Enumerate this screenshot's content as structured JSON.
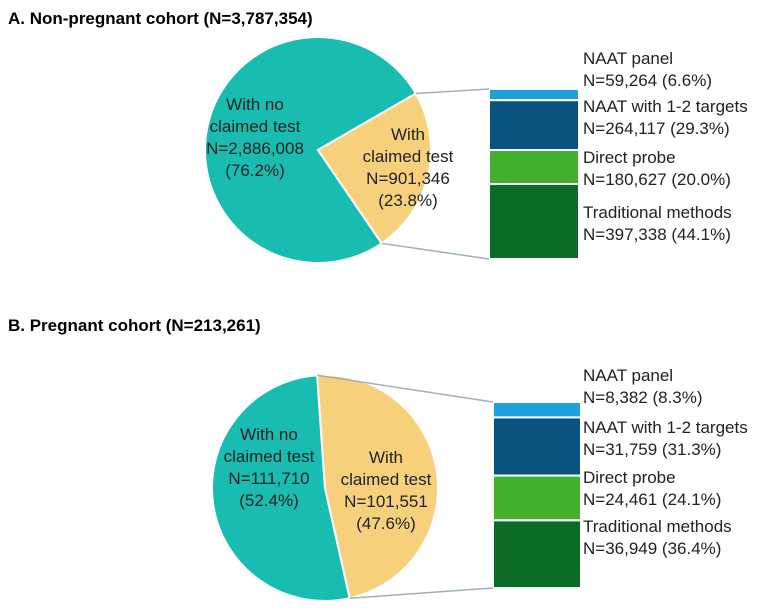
{
  "chart_data": [
    {
      "type": "pie",
      "title": "A. Non-pregnant cohort (N=3,787,354)",
      "slices": [
        {
          "lines": [
            "With no",
            "claimed test",
            "N=2,886,008",
            "(76.2%)"
          ],
          "value": 76.2,
          "color": "#18bcb0"
        },
        {
          "lines": [
            "With",
            "claimed test",
            "N=901,346",
            "(23.8%)"
          ],
          "value": 23.8,
          "color": "#f7d07c"
        }
      ],
      "breakdown": {
        "type": "bar",
        "stacked": true,
        "segments": [
          {
            "name": "NAAT panel",
            "value_text": "N=59,264 (6.6%)",
            "value": 6.6,
            "color": "#1da0dc"
          },
          {
            "name": "NAAT with 1-2 targets",
            "value_text": "N=264,117 (29.3%)",
            "value": 29.3,
            "color": "#08537f"
          },
          {
            "name": "Direct probe",
            "value_text": "N=180,627 (20.0%)",
            "value": 20.0,
            "color": "#42b02c"
          },
          {
            "name": "Traditional methods",
            "value_text": "N=397,338 (44.1%)",
            "value": 44.1,
            "color": "#0b6c26"
          }
        ]
      }
    },
    {
      "type": "pie",
      "title": "B. Pregnant cohort (N=213,261)",
      "slices": [
        {
          "lines": [
            "With no",
            "claimed test",
            "N=111,710",
            "(52.4%)"
          ],
          "value": 52.4,
          "color": "#18bcb0"
        },
        {
          "lines": [
            "With",
            "claimed test",
            "N=101,551",
            "(47.6%)"
          ],
          "value": 47.6,
          "color": "#f7d07c"
        }
      ],
      "breakdown": {
        "type": "bar",
        "stacked": true,
        "segments": [
          {
            "name": "NAAT panel",
            "value_text": "N=8,382 (8.3%)",
            "value": 8.3,
            "color": "#1da0dc"
          },
          {
            "name": "NAAT with 1-2 targets",
            "value_text": "N=31,759 (31.3%)",
            "value": 31.3,
            "color": "#08537f"
          },
          {
            "name": "Direct probe",
            "value_text": "N=24,461 (24.1%)",
            "value": 24.1,
            "color": "#42b02c"
          },
          {
            "name": "Traditional methods",
            "value_text": "N=36,949 (36.4%)",
            "value": 36.4,
            "color": "#0b6c26"
          }
        ]
      }
    }
  ]
}
